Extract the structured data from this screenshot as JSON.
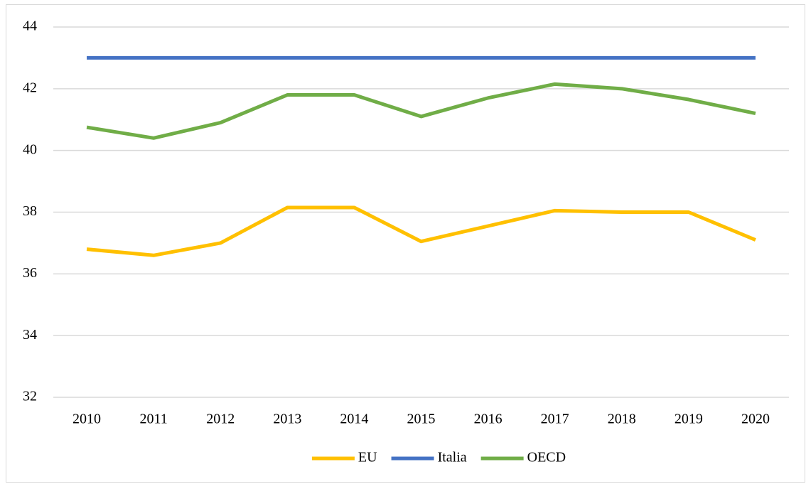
{
  "chart_data": {
    "type": "line",
    "categories": [
      "2010",
      "2011",
      "2012",
      "2013",
      "2014",
      "2015",
      "2016",
      "2017",
      "2018",
      "2019",
      "2020"
    ],
    "series": [
      {
        "name": "EU",
        "color": "#ffc000",
        "values": [
          36.8,
          36.6,
          37.0,
          38.15,
          38.15,
          37.05,
          37.55,
          38.05,
          38.0,
          38.0,
          37.1
        ]
      },
      {
        "name": "Italia",
        "color": "#4472c4",
        "values": [
          43.0,
          43.0,
          43.0,
          43.0,
          43.0,
          43.0,
          43.0,
          43.0,
          43.0,
          43.0,
          43.0
        ]
      },
      {
        "name": "OECD",
        "color": "#70ad47",
        "values": [
          40.75,
          40.4,
          40.9,
          41.8,
          41.8,
          41.1,
          41.7,
          42.15,
          42.0,
          41.65,
          41.2
        ]
      }
    ],
    "ylim": [
      32,
      44
    ],
    "yticks": [
      32,
      34,
      36,
      38,
      40,
      42,
      44
    ],
    "grid": true,
    "legend": "bottom"
  }
}
